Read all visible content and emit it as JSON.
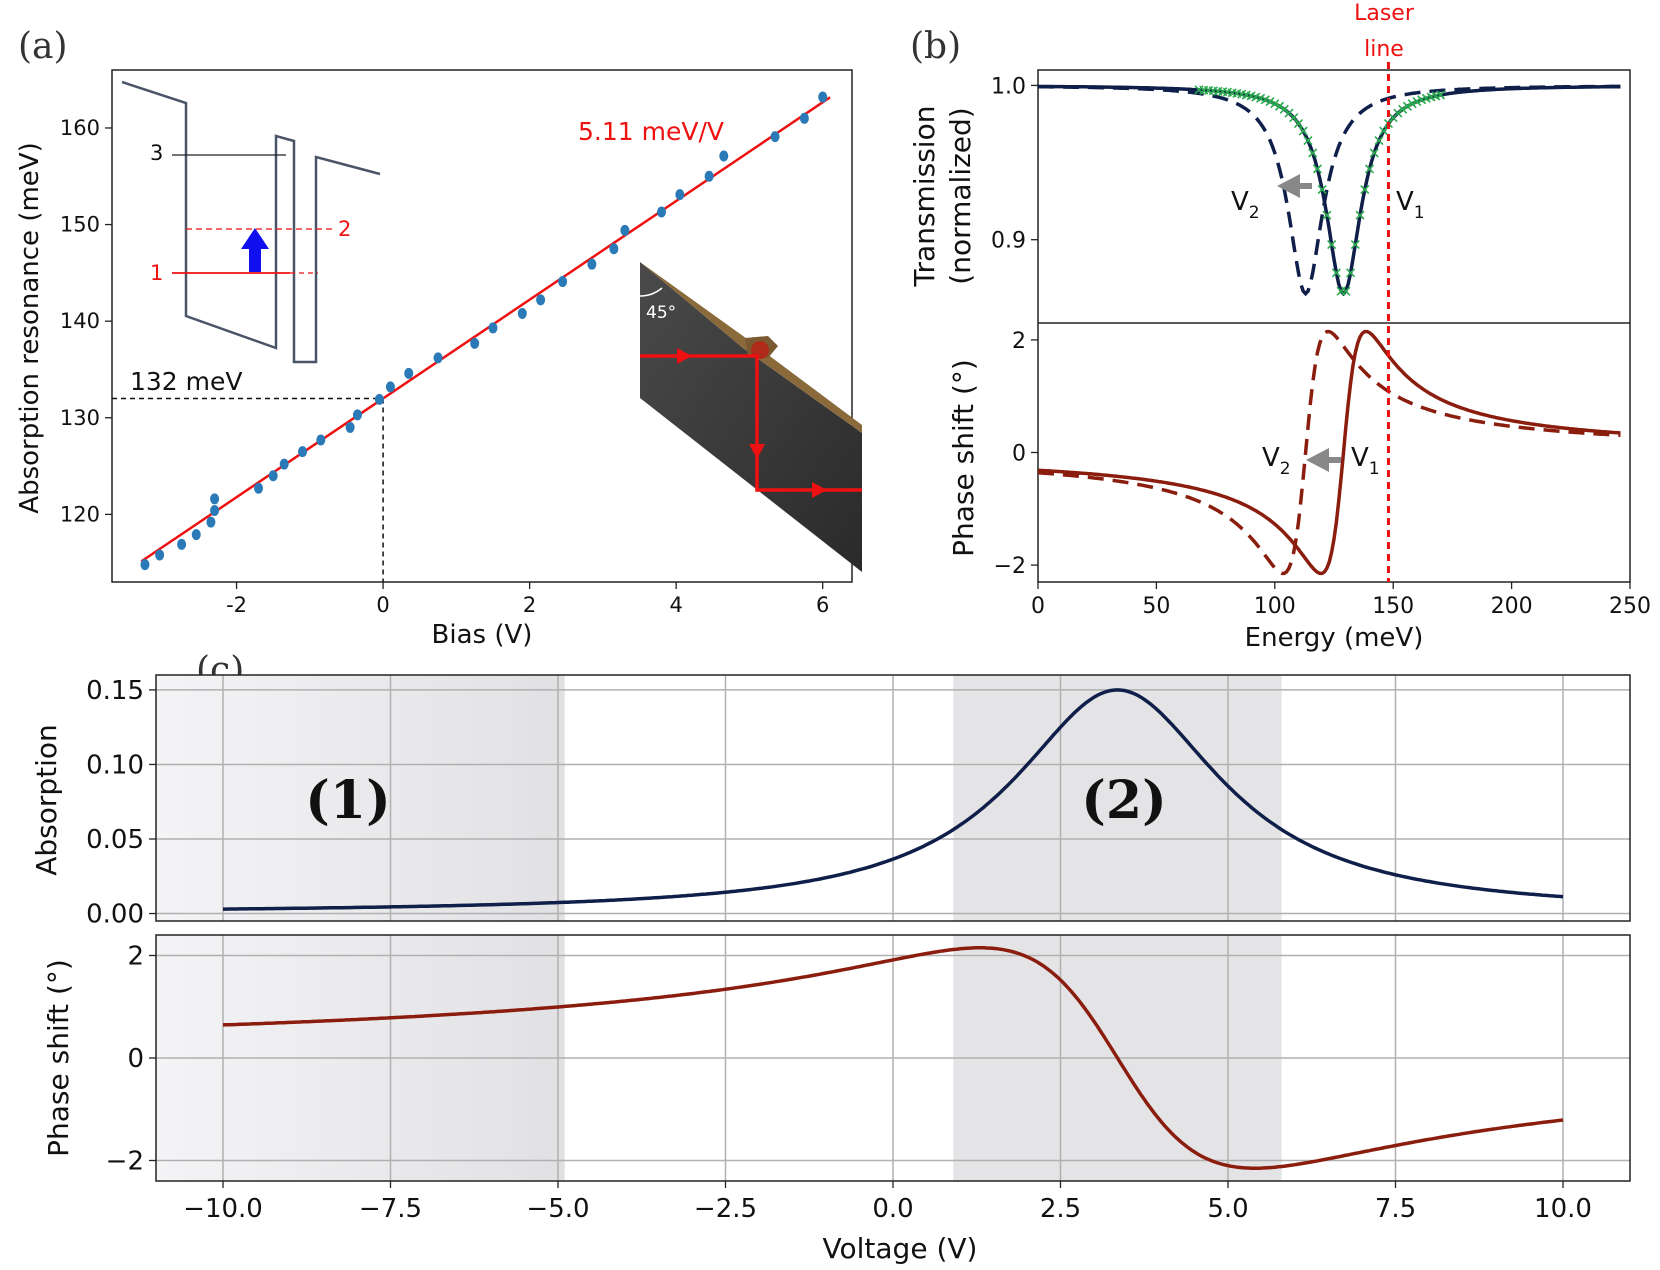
{
  "panel_labels": {
    "a": "(a)",
    "b": "(b)",
    "c": "(c)"
  },
  "chart_data": [
    {
      "id": "a",
      "type": "scatter",
      "xlabel": "Bias (V)",
      "ylabel": "Absorption resonance (meV)",
      "xlim": [
        -3.7,
        6.4
      ],
      "ylim": [
        113,
        166
      ],
      "xticks": [
        -2,
        0,
        2,
        4,
        6
      ],
      "xtick_labels": [
        "-2",
        "0",
        "2",
        "4",
        "6"
      ],
      "yticks": [
        120,
        130,
        140,
        150,
        160
      ],
      "points": [
        [
          -3.25,
          114.8
        ],
        [
          -3.05,
          115.8
        ],
        [
          -2.75,
          116.9
        ],
        [
          -2.55,
          117.9
        ],
        [
          -2.35,
          119.2
        ],
        [
          -2.3,
          120.4
        ],
        [
          -2.3,
          121.6
        ],
        [
          -1.7,
          122.7
        ],
        [
          -1.5,
          124.0
        ],
        [
          -1.35,
          125.2
        ],
        [
          -1.1,
          126.5
        ],
        [
          -0.85,
          127.7
        ],
        [
          -0.45,
          129.0
        ],
        [
          -0.35,
          130.3
        ],
        [
          -0.05,
          131.9
        ],
        [
          0.1,
          133.2
        ],
        [
          0.35,
          134.6
        ],
        [
          0.75,
          136.2
        ],
        [
          1.25,
          137.7
        ],
        [
          1.5,
          139.3
        ],
        [
          1.9,
          140.8
        ],
        [
          2.15,
          142.2
        ],
        [
          2.45,
          144.1
        ],
        [
          2.85,
          145.9
        ],
        [
          3.15,
          147.5
        ],
        [
          3.3,
          149.4
        ],
        [
          3.8,
          151.3
        ],
        [
          4.05,
          153.1
        ],
        [
          4.45,
          155.0
        ],
        [
          4.65,
          157.1
        ],
        [
          5.35,
          159.1
        ],
        [
          5.75,
          161.0
        ],
        [
          6.0,
          163.2
        ]
      ],
      "fit": {
        "slope": 5.11,
        "intercept": 132,
        "x_range": [
          -3.3,
          6.1
        ],
        "label": "5.11 meV/V"
      },
      "reference": {
        "x": 0,
        "y": 132,
        "label": "132 meV"
      },
      "inset_levels": [
        "1",
        "2",
        "3"
      ],
      "inset_angle": "45°",
      "colors": {
        "points": "#2a7ab8",
        "fit": "#ee1111",
        "band": "#4a5568",
        "arrow": "#1010ee"
      }
    },
    {
      "id": "b-top",
      "type": "line",
      "ylabel_lines": [
        "Transmission",
        "(normalized)"
      ],
      "xlim": [
        0,
        250
      ],
      "ylim": [
        0.846,
        1.01
      ],
      "yticks": [
        0.9,
        1.0
      ],
      "ytick_labels": [
        "0.9",
        "1.0"
      ],
      "series": [
        {
          "style": "solid",
          "color": "#0f1f4a",
          "center": 129,
          "width": 9,
          "depth": 0.135
        },
        {
          "style": "dashed",
          "color": "#0f1f4a",
          "center": 113,
          "width": 9,
          "depth": 0.135
        },
        {
          "style": "markers",
          "color": "#2bab4e",
          "marker": "x",
          "center": 129,
          "width": 9,
          "depth": 0.135,
          "x_range": [
            68,
            170
          ]
        }
      ],
      "laser_line": {
        "x": 148,
        "label_lines": [
          "Laser",
          "line"
        ],
        "color": "#ee1111"
      },
      "annotations": [
        "V",
        "2",
        "V",
        "1"
      ]
    },
    {
      "id": "b-bottom",
      "type": "line",
      "ylabel": "Phase shift (°)",
      "xlabel": "Energy (meV)",
      "xlim": [
        0,
        250
      ],
      "ylim": [
        -2.3,
        2.3
      ],
      "xticks": [
        0,
        50,
        100,
        150,
        200,
        250
      ],
      "yticks": [
        -2,
        0,
        2
      ],
      "ytick_labels": [
        "−2",
        "0",
        "2"
      ],
      "series": [
        {
          "style": "solid",
          "color": "#8a1d0e",
          "center": 129,
          "width": 9.5,
          "amp": 2.15
        },
        {
          "style": "dashed",
          "color": "#8a1d0e",
          "center": 113,
          "width": 9.5,
          "amp": 2.15
        }
      ],
      "annotations": [
        "V",
        "2",
        "V",
        "1"
      ]
    },
    {
      "id": "c-top",
      "type": "line",
      "ylabel": "Absorption",
      "xlim": [
        -11,
        11
      ],
      "ylim": [
        -0.005,
        0.16
      ],
      "yticks": [
        0.0,
        0.05,
        0.1,
        0.15
      ],
      "ytick_labels": [
        "0.00",
        "0.05",
        "0.10",
        "0.15"
      ],
      "xgrid": [
        -10,
        -7.5,
        -5,
        -2.5,
        0,
        2.5,
        5,
        7.5,
        10
      ],
      "regions": [
        {
          "label": "(1)",
          "x": [
            -11,
            -4.9
          ]
        },
        {
          "label": "(2)",
          "x": [
            0.9,
            5.8
          ]
        }
      ],
      "series": [
        {
          "color": "#0f1f4a",
          "center": 3.35,
          "width": 1.9,
          "amp": 0.15,
          "x_range": [
            -10,
            10
          ]
        }
      ]
    },
    {
      "id": "c-bottom",
      "type": "line",
      "ylabel": "Phase shift (°)",
      "xlabel": "Voltage (V)",
      "xlim": [
        -11,
        11
      ],
      "ylim": [
        -2.4,
        2.4
      ],
      "xticks": [
        -10,
        -7.5,
        -5,
        -2.5,
        0,
        2.5,
        5,
        7.5,
        10
      ],
      "xtick_labels": [
        "−10.0",
        "−7.5",
        "−5.0",
        "−2.5",
        "0.0",
        "2.5",
        "5.0",
        "7.5",
        "10.0"
      ],
      "yticks": [
        -2,
        0,
        2
      ],
      "ytick_labels": [
        "−2",
        "0",
        "2"
      ],
      "series": [
        {
          "color": "#8a1d0e",
          "center": 3.35,
          "width": 2.05,
          "amp": 2.15,
          "x_range": [
            -10,
            10
          ]
        }
      ]
    }
  ]
}
